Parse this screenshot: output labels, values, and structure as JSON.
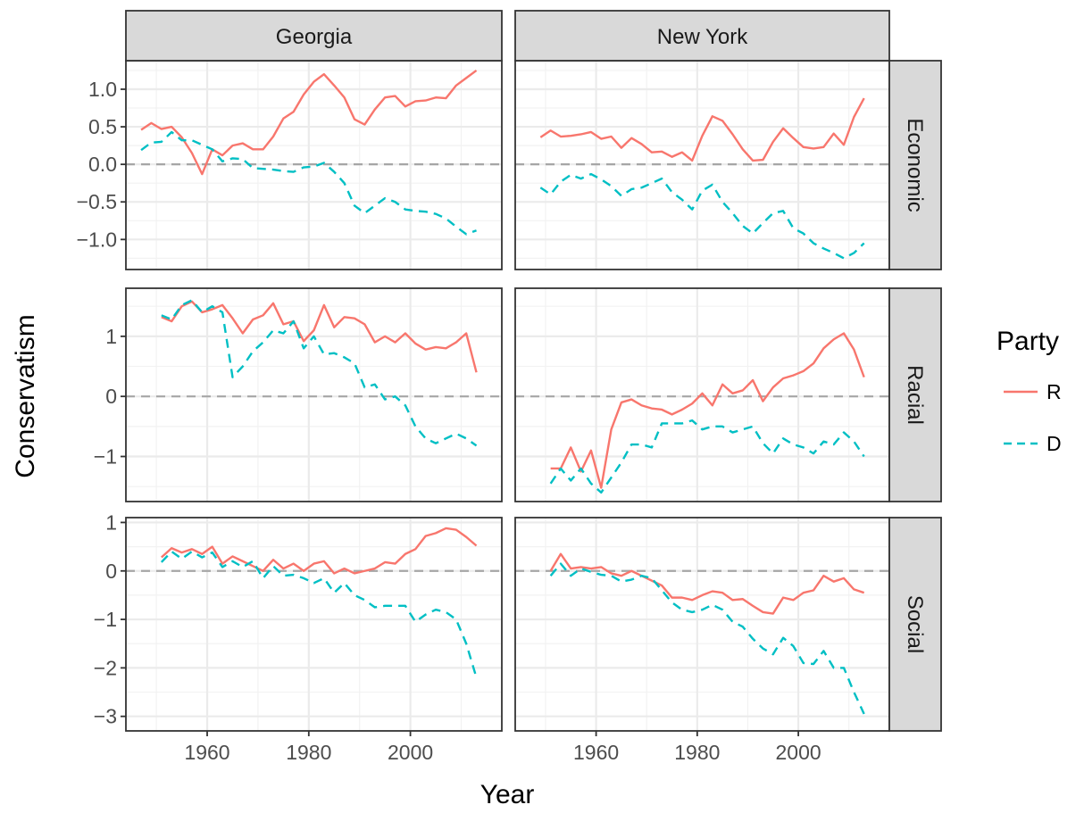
{
  "chart_data": {
    "type": "line",
    "xlabel": "Year",
    "ylabel": "Conservatism",
    "x_ticks": [
      1960,
      1980,
      2000
    ],
    "xlim": [
      1944,
      2018
    ],
    "legend": {
      "title": "Party",
      "position": "right",
      "entries": [
        {
          "label": "R",
          "color": "#F8766D",
          "linetype": "solid"
        },
        {
          "label": "D",
          "color": "#00BFC4",
          "linetype": "dashed"
        }
      ]
    },
    "reference_line": {
      "y": 0,
      "style": "dashed",
      "color": "#a6a6a6"
    },
    "facet_columns": [
      "Georgia",
      "New York"
    ],
    "facet_rows": [
      {
        "name": "Economic",
        "ylim": [
          -1.4,
          1.38
        ],
        "ticks": [
          1.0,
          0.5,
          0.0,
          -0.5,
          -1.0
        ],
        "tick_labels": [
          "1.0",
          "0.5",
          "0.0",
          "−0.5",
          "−1.0"
        ]
      },
      {
        "name": "Racial",
        "ylim": [
          -1.75,
          1.8
        ],
        "ticks": [
          1,
          0,
          -1
        ],
        "tick_labels": [
          "1",
          "0",
          "−1"
        ]
      },
      {
        "name": "Social",
        "ylim": [
          -3.3,
          1.1
        ],
        "ticks": [
          1,
          0,
          -1,
          -2,
          -3
        ],
        "tick_labels": [
          "1",
          "0",
          "−1",
          "−2",
          "−3"
        ]
      }
    ],
    "panels": [
      {
        "column": "Georgia",
        "row": "Economic",
        "series": [
          {
            "name": "R",
            "x": [
              1947,
              1949,
              1951,
              1953,
              1955,
              1957,
              1959,
              1961,
              1963,
              1965,
              1967,
              1969,
              1971,
              1973,
              1975,
              1977,
              1979,
              1981,
              1983,
              1985,
              1987,
              1989,
              1991,
              1993,
              1995,
              1997,
              1999,
              2001,
              2003,
              2005,
              2007,
              2009,
              2011,
              2013
            ],
            "y": [
              0.46,
              0.55,
              0.47,
              0.5,
              0.36,
              0.15,
              -0.13,
              0.2,
              0.12,
              0.25,
              0.28,
              0.2,
              0.2,
              0.37,
              0.61,
              0.7,
              0.93,
              1.1,
              1.2,
              1.05,
              0.89,
              0.6,
              0.53,
              0.73,
              0.89,
              0.91,
              0.77,
              0.84,
              0.85,
              0.89,
              0.88,
              1.05,
              1.15,
              1.25
            ]
          },
          {
            "name": "D",
            "x": [
              1947,
              1949,
              1951,
              1953,
              1955,
              1957,
              1959,
              1961,
              1963,
              1965,
              1967,
              1969,
              1971,
              1973,
              1975,
              1977,
              1979,
              1981,
              1983,
              1985,
              1987,
              1989,
              1991,
              1993,
              1995,
              1997,
              1999,
              2001,
              2003,
              2005,
              2007,
              2009,
              2011,
              2013
            ],
            "y": [
              0.19,
              0.29,
              0.3,
              0.43,
              0.32,
              0.32,
              0.26,
              0.2,
              0.04,
              0.08,
              0.07,
              -0.05,
              -0.06,
              -0.07,
              -0.09,
              -0.1,
              -0.04,
              -0.03,
              0.02,
              -0.1,
              -0.25,
              -0.55,
              -0.65,
              -0.55,
              -0.45,
              -0.5,
              -0.6,
              -0.62,
              -0.63,
              -0.66,
              -0.72,
              -0.83,
              -0.93,
              -0.88
            ]
          }
        ]
      },
      {
        "column": "New York",
        "row": "Economic",
        "series": [
          {
            "name": "R",
            "x": [
              1949,
              1951,
              1953,
              1955,
              1957,
              1959,
              1961,
              1963,
              1965,
              1967,
              1969,
              1971,
              1973,
              1975,
              1977,
              1979,
              1981,
              1983,
              1985,
              1987,
              1989,
              1991,
              1993,
              1995,
              1997,
              1999,
              2001,
              2003,
              2005,
              2007,
              2009,
              2011,
              2013
            ],
            "y": [
              0.36,
              0.45,
              0.37,
              0.38,
              0.4,
              0.43,
              0.34,
              0.37,
              0.22,
              0.35,
              0.27,
              0.16,
              0.17,
              0.1,
              0.16,
              0.05,
              0.38,
              0.64,
              0.58,
              0.4,
              0.2,
              0.05,
              0.06,
              0.3,
              0.48,
              0.35,
              0.23,
              0.21,
              0.23,
              0.41,
              0.26,
              0.63,
              0.88
            ]
          },
          {
            "name": "D",
            "x": [
              1949,
              1951,
              1953,
              1955,
              1957,
              1959,
              1961,
              1963,
              1965,
              1967,
              1969,
              1971,
              1973,
              1975,
              1977,
              1979,
              1981,
              1983,
              1985,
              1987,
              1989,
              1991,
              1993,
              1995,
              1997,
              1999,
              2001,
              2003,
              2005,
              2007,
              2009,
              2011,
              2013
            ],
            "y": [
              -0.31,
              -0.4,
              -0.23,
              -0.14,
              -0.19,
              -0.13,
              -0.2,
              -0.29,
              -0.42,
              -0.33,
              -0.31,
              -0.25,
              -0.19,
              -0.37,
              -0.47,
              -0.6,
              -0.35,
              -0.27,
              -0.5,
              -0.65,
              -0.82,
              -0.92,
              -0.78,
              -0.65,
              -0.62,
              -0.85,
              -0.92,
              -1.05,
              -1.12,
              -1.18,
              -1.25,
              -1.18,
              -1.05
            ]
          }
        ]
      },
      {
        "column": "Georgia",
        "row": "Racial",
        "series": [
          {
            "name": "R",
            "x": [
              1951,
              1953,
              1955,
              1957,
              1959,
              1961,
              1963,
              1965,
              1967,
              1969,
              1971,
              1973,
              1975,
              1977,
              1979,
              1981,
              1983,
              1985,
              1987,
              1989,
              1991,
              1993,
              1995,
              1997,
              1999,
              2001,
              2003,
              2005,
              2007,
              2009,
              2011,
              2013
            ],
            "y": [
              1.32,
              1.25,
              1.5,
              1.58,
              1.4,
              1.45,
              1.52,
              1.3,
              1.05,
              1.28,
              1.35,
              1.55,
              1.2,
              1.25,
              0.92,
              1.1,
              1.52,
              1.15,
              1.32,
              1.3,
              1.2,
              0.9,
              1.0,
              0.9,
              1.05,
              0.88,
              0.78,
              0.82,
              0.8,
              0.9,
              1.05,
              0.4
            ]
          },
          {
            "name": "D",
            "x": [
              1951,
              1953,
              1955,
              1957,
              1959,
              1961,
              1963,
              1965,
              1967,
              1969,
              1971,
              1973,
              1975,
              1977,
              1979,
              1981,
              1983,
              1985,
              1987,
              1989,
              1991,
              1993,
              1995,
              1997,
              1999,
              2001,
              2003,
              2005,
              2007,
              2009,
              2011,
              2013
            ],
            "y": [
              1.35,
              1.28,
              1.52,
              1.6,
              1.4,
              1.5,
              1.4,
              0.32,
              0.5,
              0.75,
              0.9,
              1.1,
              1.05,
              1.25,
              0.8,
              1.0,
              0.7,
              0.72,
              0.65,
              0.55,
              0.15,
              0.2,
              -0.05,
              0.0,
              -0.15,
              -0.5,
              -0.7,
              -0.78,
              -0.7,
              -0.62,
              -0.7,
              -0.82
            ]
          }
        ]
      },
      {
        "column": "New York",
        "row": "Racial",
        "series": [
          {
            "name": "R",
            "x": [
              1951,
              1953,
              1955,
              1957,
              1959,
              1961,
              1963,
              1965,
              1967,
              1969,
              1971,
              1973,
              1975,
              1977,
              1979,
              1981,
              1983,
              1985,
              1987,
              1989,
              1991,
              1993,
              1995,
              1997,
              1999,
              2001,
              2003,
              2005,
              2007,
              2009,
              2011,
              2013
            ],
            "y": [
              -1.2,
              -1.2,
              -0.85,
              -1.25,
              -0.9,
              -1.52,
              -0.55,
              -0.1,
              -0.05,
              -0.15,
              -0.2,
              -0.22,
              -0.3,
              -0.22,
              -0.12,
              0.05,
              -0.15,
              0.2,
              0.05,
              0.1,
              0.27,
              -0.08,
              0.15,
              0.3,
              0.35,
              0.42,
              0.55,
              0.8,
              0.95,
              1.05,
              0.78,
              0.32
            ]
          },
          {
            "name": "D",
            "x": [
              1951,
              1953,
              1955,
              1957,
              1959,
              1961,
              1963,
              1965,
              1967,
              1969,
              1971,
              1973,
              1975,
              1977,
              1979,
              1981,
              1983,
              1985,
              1987,
              1989,
              1991,
              1993,
              1995,
              1997,
              1999,
              2001,
              2003,
              2005,
              2007,
              2009,
              2011,
              2013
            ],
            "y": [
              -1.45,
              -1.2,
              -1.4,
              -1.2,
              -1.45,
              -1.6,
              -1.35,
              -1.1,
              -0.8,
              -0.8,
              -0.85,
              -0.45,
              -0.45,
              -0.45,
              -0.4,
              -0.55,
              -0.5,
              -0.5,
              -0.6,
              -0.55,
              -0.5,
              -0.78,
              -0.95,
              -0.7,
              -0.8,
              -0.85,
              -0.95,
              -0.75,
              -0.8,
              -0.6,
              -0.75,
              -1.0
            ]
          }
        ]
      },
      {
        "column": "Georgia",
        "row": "Social",
        "series": [
          {
            "name": "R",
            "x": [
              1951,
              1953,
              1955,
              1957,
              1959,
              1961,
              1963,
              1965,
              1967,
              1969,
              1971,
              1973,
              1975,
              1977,
              1979,
              1981,
              1983,
              1985,
              1987,
              1989,
              1991,
              1993,
              1995,
              1997,
              1999,
              2001,
              2003,
              2005,
              2007,
              2009,
              2011,
              2013
            ],
            "y": [
              0.28,
              0.47,
              0.38,
              0.45,
              0.35,
              0.5,
              0.15,
              0.3,
              0.2,
              0.1,
              0.0,
              0.23,
              0.05,
              0.15,
              0.0,
              0.15,
              0.2,
              -0.05,
              0.05,
              -0.05,
              0.0,
              0.05,
              0.18,
              0.15,
              0.35,
              0.45,
              0.72,
              0.78,
              0.88,
              0.85,
              0.7,
              0.52
            ]
          },
          {
            "name": "D",
            "x": [
              1951,
              1953,
              1955,
              1957,
              1959,
              1961,
              1963,
              1965,
              1967,
              1969,
              1971,
              1973,
              1975,
              1977,
              1979,
              1981,
              1983,
              1985,
              1987,
              1989,
              1991,
              1993,
              1995,
              1997,
              1999,
              2001,
              2003,
              2005,
              2007,
              2009,
              2011,
              2013
            ],
            "y": [
              0.18,
              0.4,
              0.25,
              0.4,
              0.28,
              0.38,
              0.08,
              0.2,
              0.08,
              0.2,
              -0.15,
              0.1,
              -0.1,
              -0.08,
              -0.15,
              -0.25,
              -0.15,
              -0.45,
              -0.25,
              -0.5,
              -0.6,
              -0.75,
              -0.72,
              -0.72,
              -0.72,
              -1.05,
              -0.9,
              -0.8,
              -0.85,
              -1.0,
              -1.5,
              -2.2
            ]
          }
        ]
      },
      {
        "column": "New York",
        "row": "Social",
        "series": [
          {
            "name": "R",
            "x": [
              1951,
              1953,
              1955,
              1957,
              1959,
              1961,
              1963,
              1965,
              1967,
              1969,
              1971,
              1973,
              1975,
              1977,
              1979,
              1981,
              1983,
              1985,
              1987,
              1989,
              1991,
              1993,
              1995,
              1997,
              1999,
              2001,
              2003,
              2005,
              2007,
              2009,
              2011,
              2013
            ],
            "y": [
              0.0,
              0.35,
              0.05,
              0.08,
              0.05,
              0.08,
              -0.05,
              -0.1,
              0.0,
              -0.1,
              -0.2,
              -0.3,
              -0.55,
              -0.55,
              -0.6,
              -0.5,
              -0.42,
              -0.45,
              -0.6,
              -0.58,
              -0.72,
              -0.85,
              -0.88,
              -0.55,
              -0.6,
              -0.45,
              -0.4,
              -0.1,
              -0.22,
              -0.15,
              -0.38,
              -0.45
            ]
          },
          {
            "name": "D",
            "x": [
              1951,
              1953,
              1955,
              1957,
              1959,
              1961,
              1963,
              1965,
              1967,
              1969,
              1971,
              1973,
              1975,
              1977,
              1979,
              1981,
              1983,
              1985,
              1987,
              1989,
              1991,
              1993,
              1995,
              1997,
              1999,
              2001,
              2003,
              2005,
              2007,
              2009,
              2011,
              2013
            ],
            "y": [
              -0.1,
              0.15,
              -0.1,
              0.05,
              -0.02,
              -0.08,
              -0.1,
              -0.22,
              -0.18,
              -0.1,
              -0.15,
              -0.4,
              -0.65,
              -0.8,
              -0.85,
              -0.8,
              -0.7,
              -0.8,
              -1.05,
              -1.15,
              -1.4,
              -1.6,
              -1.72,
              -1.38,
              -1.55,
              -1.9,
              -1.92,
              -1.65,
              -2.0,
              -2.0,
              -2.5,
              -2.95
            ]
          }
        ]
      }
    ]
  }
}
